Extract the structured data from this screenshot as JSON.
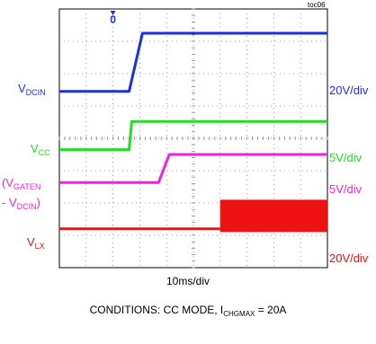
{
  "figure_id": "toc06",
  "timebase": "10ms/div",
  "conditions": {
    "prefix": "CONDITIONS: CC MODE, I",
    "sub": "CHGMAX",
    "suffix": " = 20A"
  },
  "colors": {
    "dcin": "#1a2fe0",
    "vcc": "#22dd22",
    "gate": "#ee22dd",
    "lx": "#ee1111",
    "grid": "#888888"
  },
  "chart_data": {
    "type": "line",
    "title": "",
    "xlabel": "10ms/div",
    "x_divisions": 10,
    "y_divisions": 8,
    "trigger_marker_x_div": 2.0,
    "series": [
      {
        "key": "dcin",
        "label_main": "V",
        "label_sub": "DCIN",
        "scale": "20V/div",
        "points": [
          [
            0,
            2.55
          ],
          [
            2.6,
            2.55
          ],
          [
            3.1,
            0.75
          ],
          [
            10,
            0.75
          ]
        ]
      },
      {
        "key": "vcc",
        "label_main": "V",
        "label_sub": "CC",
        "scale": "5V/div",
        "points": [
          [
            0,
            4.35
          ],
          [
            2.6,
            4.35
          ],
          [
            2.7,
            3.48
          ],
          [
            10,
            3.48
          ]
        ]
      },
      {
        "key": "gate",
        "label_lines": [
          "(V",
          "GATEN",
          "- V",
          "DCIN",
          ")"
        ],
        "scale": "5V/div",
        "points": [
          [
            0,
            5.37
          ],
          [
            3.7,
            5.37
          ],
          [
            4.1,
            4.5
          ],
          [
            10,
            4.5
          ]
        ]
      },
      {
        "key": "lx",
        "label_main": "V",
        "label_sub": "LX",
        "scale": "20V/div",
        "points": [
          [
            0,
            6.8
          ],
          [
            6.0,
            6.8
          ]
        ],
        "switching": {
          "from_div": 6.0,
          "to_div": 10,
          "top_div": 5.9,
          "bottom_div": 6.9
        }
      }
    ]
  }
}
